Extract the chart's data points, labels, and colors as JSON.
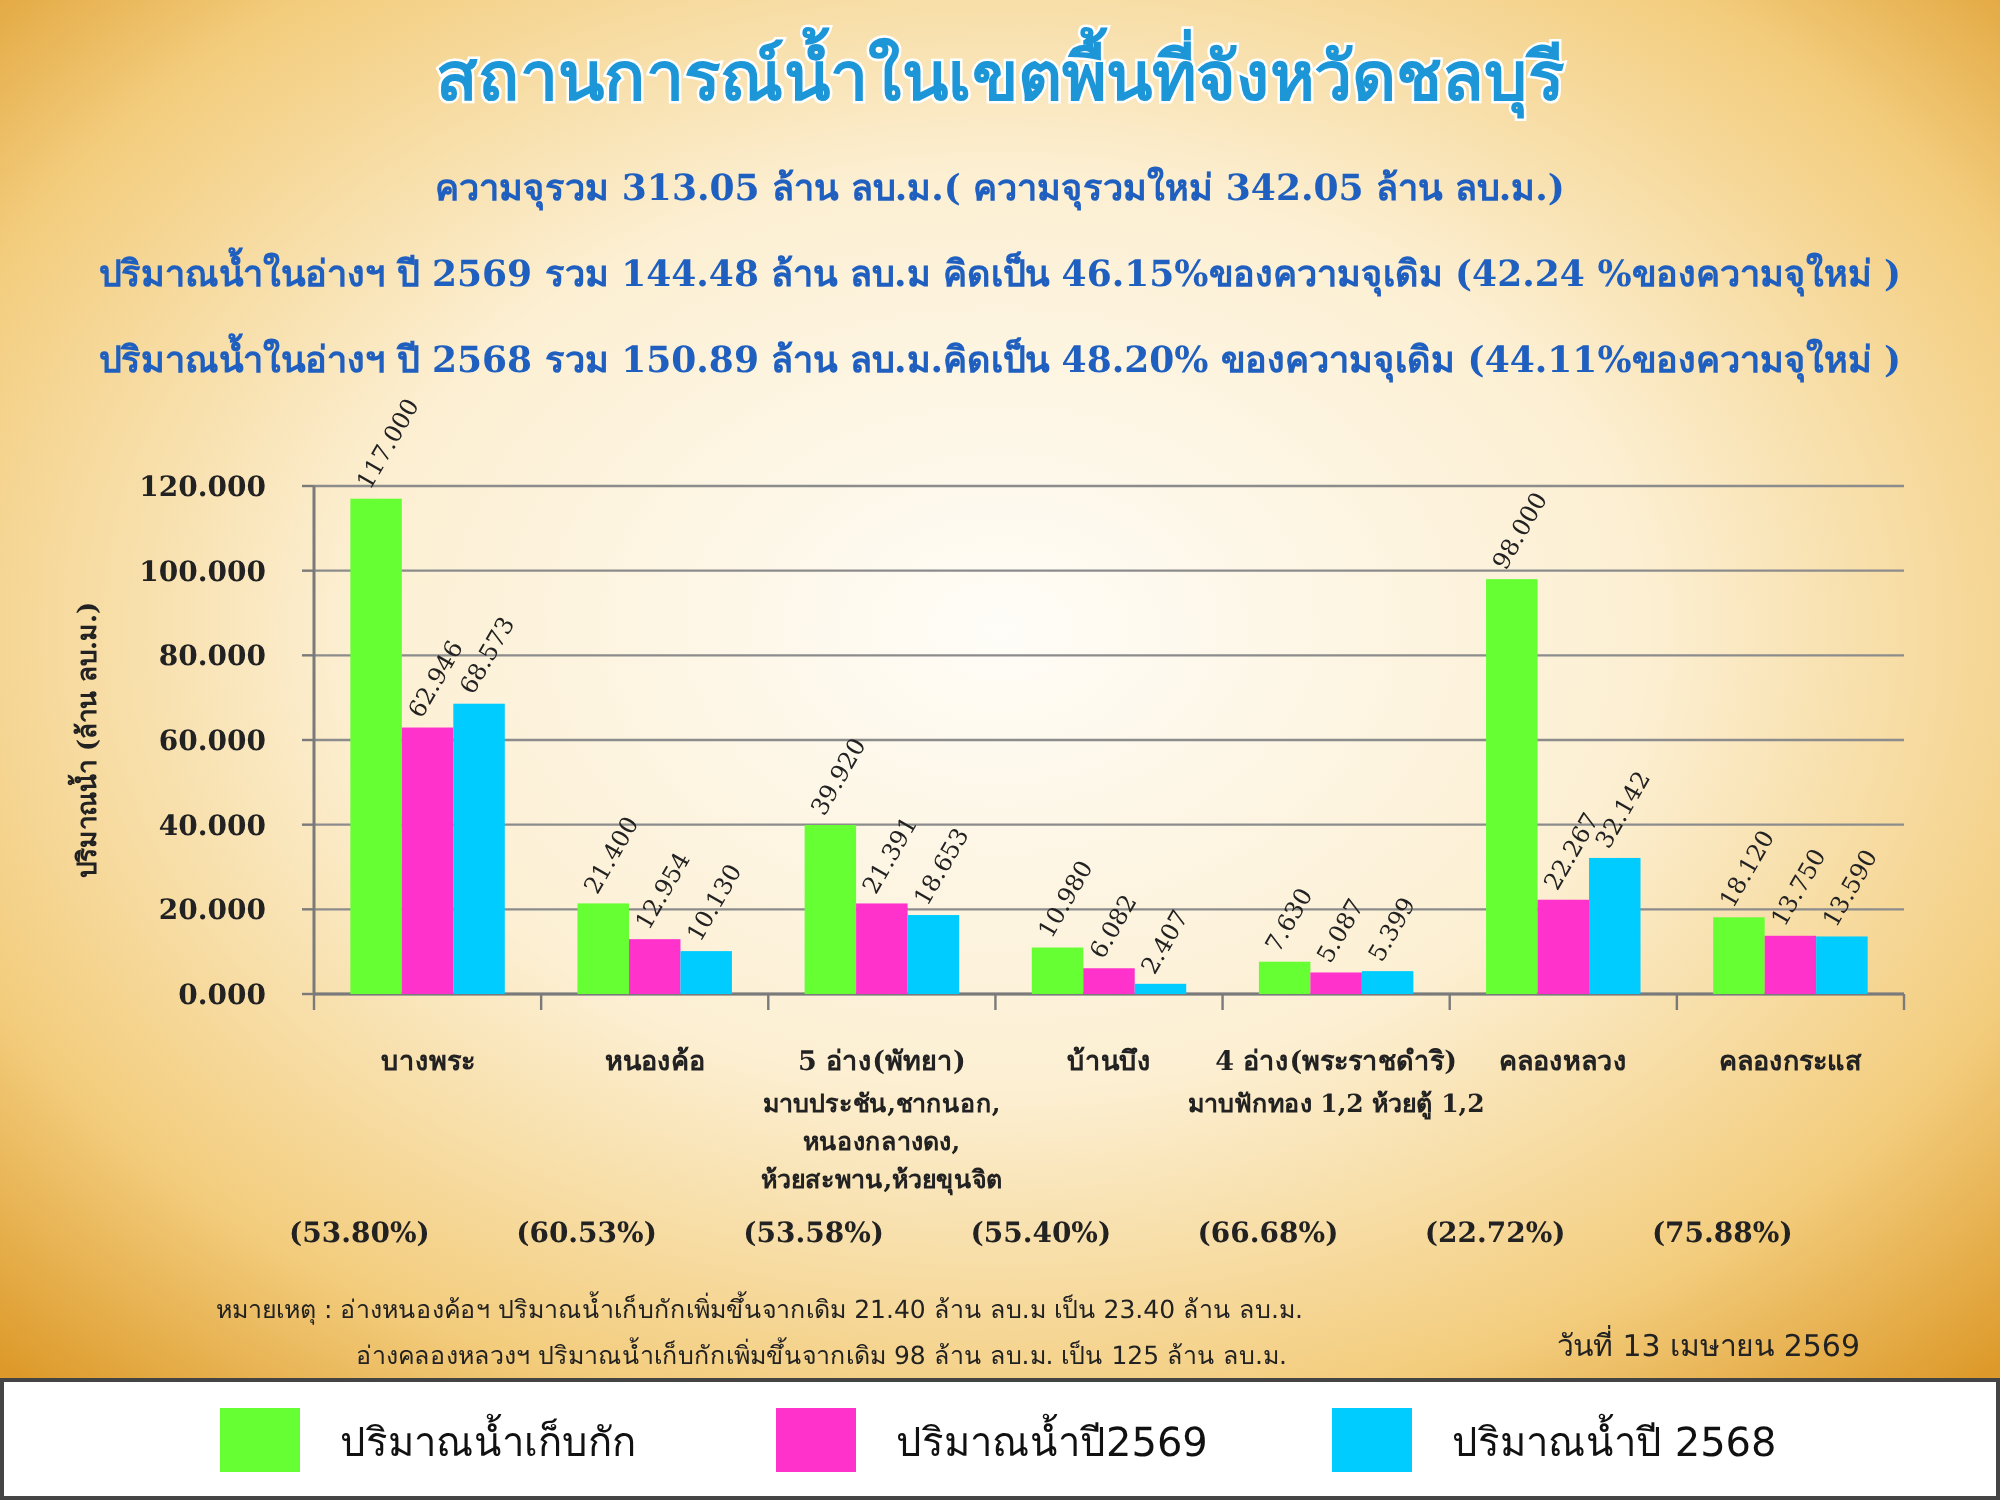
{
  "chart_data": {
    "type": "bar",
    "title": "สถานการณ์น้ำในเขตพื้นที่จังหวัดชลบุรี",
    "subtitle": "ความจุรวม 313.05 ล้าน ลบ.ม.( ความจุรวมใหม่ 342.05 ล้าน ลบ.ม.)\nปริมาณน้ำในอ่างฯ ปี 2569 รวม 144.48 ล้าน ลบ.ม คิดเป็น 46.15%ของความจุเดิม (42.24 %ของความจุใหม่ )\nปริมาณน้ำในอ่างฯ ปี 2568 รวม 150.89 ล้าน ลบ.ม.คิดเป็น 48.20% ของความจุเดิม (44.11%ของความจุใหม่ )",
    "ylabel": "ปริมาณน้ำ (ล้าน ลบ.ม.)",
    "categories": [
      "บางพระ",
      "หนองค้อ",
      "5 อ่าง(พัทยา)\nมาบประชัน,ชากนอก,\nหนองกลางดง,\nห้วยสะพาน,ห้วยขุนจิต",
      "บ้านบึง",
      "4 อ่าง(พระราชดำริ)\nมาบฟักทอง 1,2 ห้วยตู้ 1,2",
      "คลองหลวง",
      "คลองกระแส"
    ],
    "series": [
      {
        "name": "ปริมาณน้ำเก็บกัก",
        "color": "#66ff33",
        "values": [
          117,
          21.4,
          39.92,
          10.98,
          7.63,
          98,
          18.12
        ],
        "value_labels": [
          "117.000",
          "21.400",
          "39.920",
          "10.980",
          "7.630",
          "98.000",
          "18.120"
        ]
      },
      {
        "name": "ปริมาณน้ำปี2569",
        "color": "#ff33cc",
        "values": [
          62.946,
          12.954,
          21.391,
          6.082,
          5.087,
          22.267,
          13.75
        ],
        "value_labels": [
          "62.946",
          "12.954",
          "21.391",
          "6.082",
          "5.087",
          "22.267",
          "13.750"
        ]
      },
      {
        "name": "ปริมาณน้ำปี 2568",
        "color": "#00ccff",
        "values": [
          68.573,
          10.13,
          18.653,
          2.407,
          5.399,
          32.142,
          13.59
        ],
        "value_labels": [
          "68.573",
          "10.130",
          "18.653",
          "2.407",
          "5.399",
          "32.142",
          "13.590"
        ]
      }
    ],
    "ylim": [
      0,
      120
    ],
    "yticks": [
      {
        "value": 0,
        "label": "0.000"
      },
      {
        "value": 20,
        "label": "20.000"
      },
      {
        "value": 40,
        "label": "40.000"
      },
      {
        "value": 60,
        "label": "60.000"
      },
      {
        "value": 80,
        "label": "80.000"
      },
      {
        "value": 100,
        "label": "100.000"
      },
      {
        "value": 120,
        "label": "120.000"
      }
    ],
    "grid": "y",
    "legend": "bottom",
    "annotations": [
      "(53.80%)",
      "(60.53%)",
      "(53.58%)",
      "(55.40%)",
      "(66.68%)",
      "(22.72%)",
      "(75.88%)",
      "หมายเหตุ : อ่างหนองค้อฯ ปริมาณน้ำเก็บกักเพิ่มขึ้นจากเดิม 21.40 ล้าน ลบ.ม เป็น 23.40 ล้าน ลบ.ม.",
      "อ่างคลองหลวงฯ ปริมาณน้ำเก็บกักเพิ่มขึ้นจากเดิม 98 ล้าน ลบ.ม. เป็น 125 ล้าน ลบ.ม.",
      "วันที่ 13 เมษายน 2569"
    ]
  }
}
